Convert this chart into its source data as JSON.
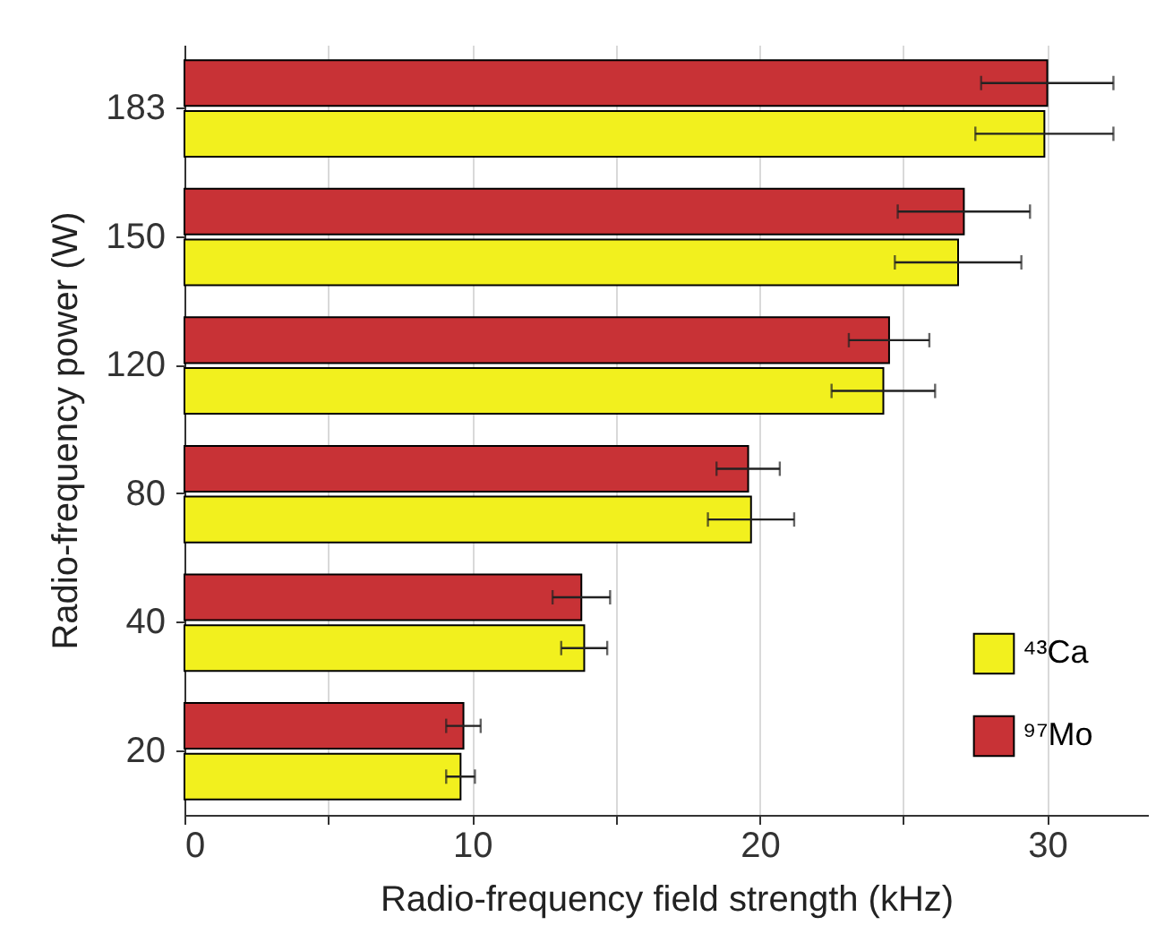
{
  "chart_data": {
    "type": "bar",
    "orientation": "horizontal",
    "xlabel": "Radio-frequency field strength (kHz)",
    "ylabel": "Radio-frequency power (W)",
    "categories": [
      "183",
      "150",
      "120",
      "80",
      "40",
      "20"
    ],
    "xlim": [
      0,
      33.5
    ],
    "xticks": [
      0,
      {
        "value": 5,
        "label": null
      },
      10,
      {
        "value": 15,
        "label": null
      },
      20,
      {
        "value": 25,
        "label": null
      },
      30
    ],
    "grid": "x",
    "legend": "bottom right",
    "series": [
      {
        "name": "⁴³Ca",
        "color": "#f2f01e",
        "values": [
          29.9,
          26.9,
          24.3,
          19.7,
          13.9,
          9.6
        ],
        "errors": [
          2.4,
          2.2,
          1.8,
          1.5,
          0.8,
          0.5
        ]
      },
      {
        "name": "⁹⁷Mo",
        "color": "#c83236",
        "values": [
          30.0,
          27.1,
          24.5,
          19.6,
          13.8,
          9.7
        ],
        "errors": [
          2.3,
          2.3,
          1.4,
          1.1,
          1.0,
          0.6
        ]
      }
    ]
  }
}
